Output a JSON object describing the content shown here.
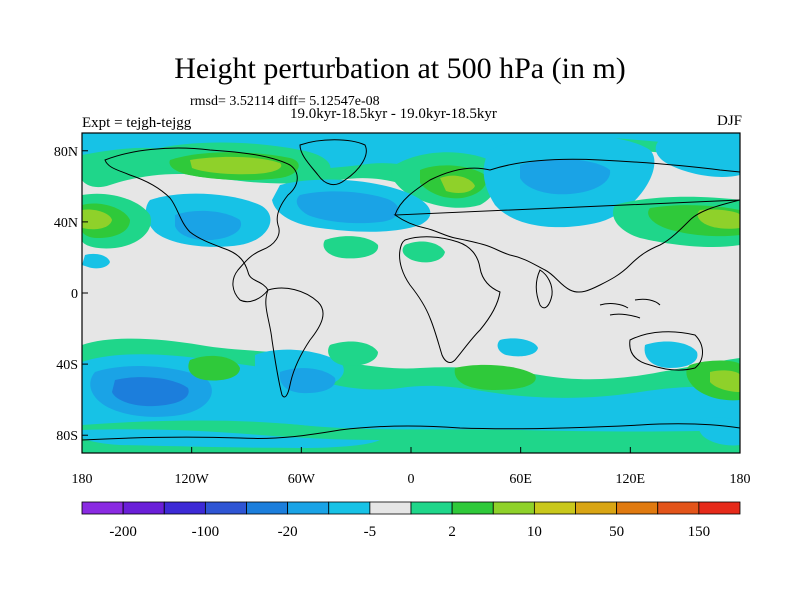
{
  "title": "Height perturbation at 500 hPa (in m)",
  "stats": "rmsd= 3.52114 diff= 5.12547e-08",
  "period": "19.0kyr-18.5kyr - 19.0kyr-18.5kyr",
  "experiment": "Expt = tejgh-tejgg",
  "season": "DJF",
  "lat_ticks": [
    "80N",
    "40N",
    "0",
    "40S",
    "80S"
  ],
  "lon_ticks": [
    "180",
    "120W",
    "60W",
    "0",
    "60E",
    "120E",
    "180"
  ],
  "colorbar": {
    "labels": [
      "-200",
      "-100",
      "-20",
      "-5",
      "2",
      "10",
      "50",
      "150"
    ],
    "colors": [
      "#8a2be2",
      "#6a1fd8",
      "#3d2ad6",
      "#2f55d4",
      "#1c7edc",
      "#1aa3e6",
      "#17c2e6",
      "#e6e6e6",
      "#1fd68a",
      "#2fc93a",
      "#8fd12a",
      "#c9c81c",
      "#d9a514",
      "#e07a10",
      "#e3541a",
      "#e62a1a"
    ]
  },
  "chart_data": {
    "type": "heatmap",
    "title": "Height perturbation at 500 hPa (in m)",
    "xlabel": "",
    "ylabel": "",
    "xlim": [
      -180,
      180
    ],
    "ylim": [
      -90,
      90
    ],
    "x_ticks": [
      "180",
      "120W",
      "60W",
      "0",
      "60E",
      "120E",
      "180"
    ],
    "y_ticks": [
      "80N",
      "40N",
      "0",
      "40S",
      "80S"
    ],
    "color_levels": [
      "-200",
      "-100",
      "-20",
      "-5",
      "2",
      "10",
      "50",
      "150"
    ],
    "anomalies": [
      {
        "lon": -95,
        "lat": 65,
        "value": 25
      },
      {
        "lon": 30,
        "lat": 62,
        "value": 20
      },
      {
        "lon": 55,
        "lat": 62,
        "value": -20
      },
      {
        "lon": -30,
        "lat": 45,
        "value": -10
      },
      {
        "lon": -170,
        "lat": 45,
        "value": 15
      },
      {
        "lon": 150,
        "lat": 45,
        "value": 10
      },
      {
        "lon": -140,
        "lat": -50,
        "value": -15
      },
      {
        "lon": 170,
        "lat": -50,
        "value": 15
      },
      {
        "lon": 150,
        "lat": -30,
        "value": -5
      }
    ]
  }
}
